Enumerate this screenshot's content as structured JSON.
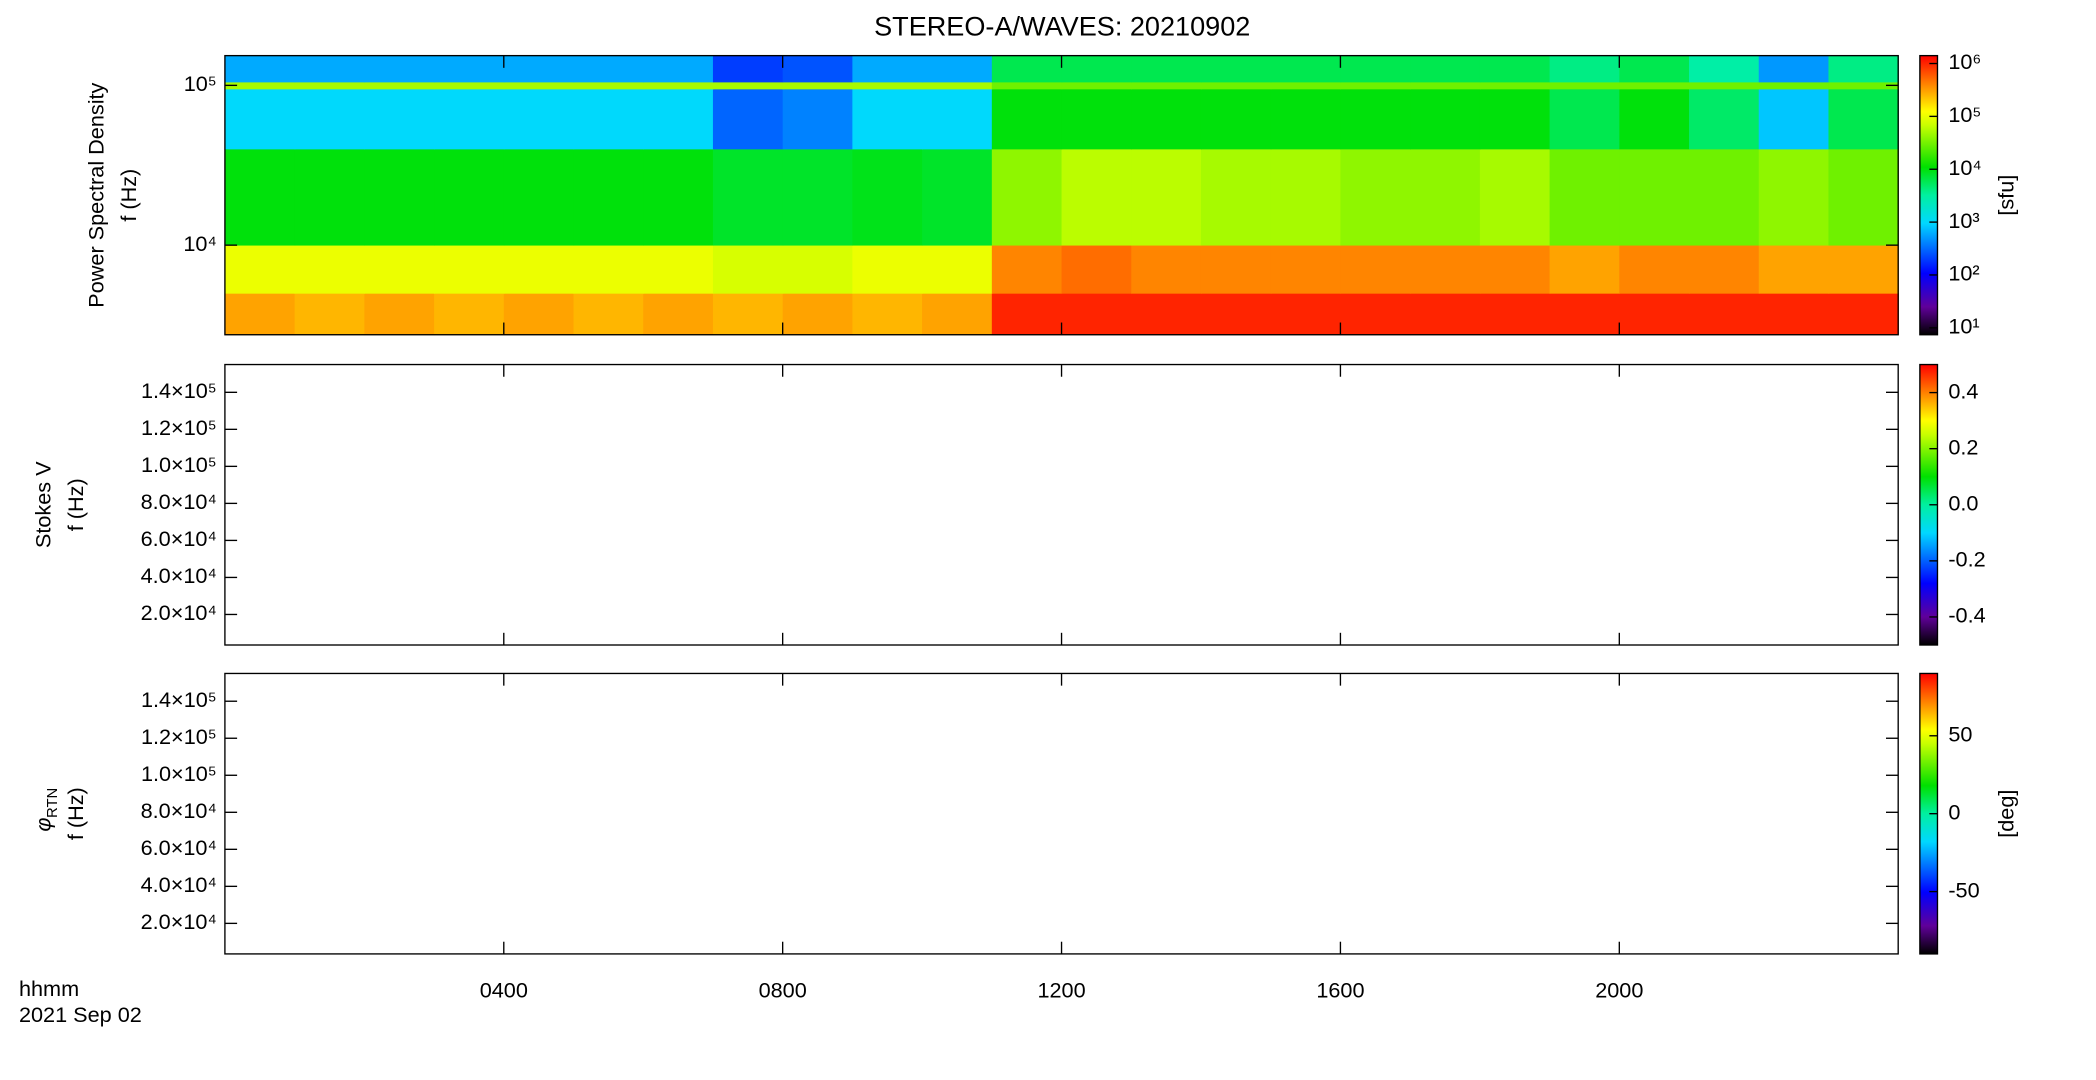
{
  "colormap": [
    [
      0,
      "#000000"
    ],
    [
      0.1,
      "#60009a"
    ],
    [
      0.22,
      "#0000ff"
    ],
    [
      0.4,
      "#00d8ff"
    ],
    [
      0.5,
      "#00f0a0"
    ],
    [
      0.6,
      "#00e000"
    ],
    [
      0.75,
      "#c8ff00"
    ],
    [
      0.8,
      "#ffff00"
    ],
    [
      0.9,
      "#ff8000"
    ],
    [
      1,
      "#ff0000"
    ]
  ],
  "chart_data": [
    {
      "type": "heatmap",
      "title": "STEREO-A/WAVES: 20210902",
      "ylabel": [
        "Power Spectral Density",
        "f (Hz)"
      ],
      "yscale": "log",
      "ylim": [
        2750,
        153500
      ],
      "yticks": [
        {
          "value": 10000,
          "label": "10⁴"
        },
        {
          "value": 100000,
          "label": "10⁵"
        }
      ],
      "cscale": "log",
      "clim": [
        7.4,
        1410000
      ],
      "cticks": [
        {
          "value": 10,
          "label": "10¹"
        },
        {
          "value": 100,
          "label": "10²"
        },
        {
          "value": 1000,
          "label": "10³"
        },
        {
          "value": 10000,
          "label": "10⁴"
        },
        {
          "value": 100000,
          "label": "10⁵"
        },
        {
          "value": 1000000,
          "label": "10⁶"
        }
      ],
      "clabel": "[sfu]",
      "x": [
        0,
        1,
        2,
        3,
        4,
        5,
        6,
        7,
        8,
        9,
        10,
        11,
        12,
        13,
        14,
        15,
        16,
        17,
        18,
        19,
        20,
        21,
        22,
        23,
        24
      ],
      "y": [
        2750,
        5000,
        10000,
        40000,
        95000,
        105000,
        153500
      ],
      "z": [
        [
          300000,
          250000,
          300000,
          250000,
          300000,
          250000,
          300000,
          250000,
          300000,
          250000,
          300000,
          1000000,
          1000000,
          1000000,
          1000000,
          1000000,
          1000000,
          1000000,
          1000000,
          1000000,
          1000000,
          1000000,
          1000000,
          1000000
        ],
        [
          100000,
          100000,
          100000,
          100000,
          100000,
          100000,
          100000,
          80000,
          80000,
          100000,
          100000,
          400000,
          500000,
          400000,
          400000,
          400000,
          400000,
          400000,
          400000,
          300000,
          400000,
          400000,
          300000,
          300000
        ],
        [
          10000,
          10000,
          10000,
          10000,
          10000,
          10000,
          10000,
          8000,
          8000,
          9000,
          8000,
          40000,
          60000,
          60000,
          50000,
          50000,
          40000,
          40000,
          50000,
          30000,
          30000,
          30000,
          40000,
          30000
        ],
        [
          1000,
          1000,
          1000,
          1000,
          1000,
          1000,
          1000,
          300,
          400,
          1000,
          1000,
          10000,
          10000,
          10000,
          10000,
          10000,
          10000,
          10000,
          10000,
          6000,
          10000,
          5000,
          800,
          6000
        ],
        [
          50000,
          50000,
          50000,
          50000,
          50000,
          50000,
          50000,
          50000,
          50000,
          50000,
          50000,
          30000,
          30000,
          30000,
          30000,
          30000,
          30000,
          30000,
          30000,
          30000,
          30000,
          30000,
          30000,
          30000
        ],
        [
          600,
          600,
          600,
          600,
          600,
          600,
          600,
          200,
          250,
          600,
          600,
          6000,
          6000,
          6000,
          6000,
          6000,
          6000,
          6000,
          6000,
          4000,
          6000,
          3000,
          500,
          4000
        ]
      ]
    },
    {
      "type": "heatmap",
      "ylabel": [
        "Stokes V",
        "f (Hz)"
      ],
      "yscale": "linear",
      "ylim": [
        3500,
        155000
      ],
      "yticks": [
        {
          "value": 20000,
          "label": "2.0×10⁴"
        },
        {
          "value": 40000,
          "label": "4.0×10⁴"
        },
        {
          "value": 60000,
          "label": "6.0×10⁴"
        },
        {
          "value": 80000,
          "label": "8.0×10⁴"
        },
        {
          "value": 100000,
          "label": "1.0×10⁵"
        },
        {
          "value": 120000,
          "label": "1.2×10⁵"
        },
        {
          "value": 140000,
          "label": "1.4×10⁵"
        }
      ],
      "cscale": "linear",
      "clim": [
        -0.5,
        0.5
      ],
      "cticks": [
        -0.4,
        -0.2,
        {
          "value": 0,
          "label": "0.0"
        },
        0.2,
        0.4
      ]
    },
    {
      "type": "heatmap",
      "ylabel": [
        {
          "symbol": "φ",
          "subscript": "RTN"
        },
        "f (Hz)"
      ],
      "yscale": "linear",
      "ylim": [
        3500,
        155000
      ],
      "yticks": [
        {
          "value": 20000,
          "label": "2.0×10⁴"
        },
        {
          "value": 40000,
          "label": "4.0×10⁴"
        },
        {
          "value": 60000,
          "label": "6.0×10⁴"
        },
        {
          "value": 80000,
          "label": "8.0×10⁴"
        },
        {
          "value": 100000,
          "label": "1.0×10⁵"
        },
        {
          "value": 120000,
          "label": "1.2×10⁵"
        },
        {
          "value": 140000,
          "label": "1.4×10⁵"
        }
      ],
      "cscale": "linear",
      "clim": [
        -90,
        90
      ],
      "cticks": [
        -50,
        0,
        50
      ],
      "clabel": "[deg]",
      "xlabel": "hhmm",
      "date": "2021 Sep 02",
      "xlim": [
        0,
        24
      ],
      "xticks": [
        {
          "value": 4,
          "label": "0400"
        },
        {
          "value": 8,
          "label": "0800"
        },
        {
          "value": 12,
          "label": "1200"
        },
        {
          "value": 16,
          "label": "1600"
        },
        {
          "value": 20,
          "label": "2000"
        }
      ]
    }
  ]
}
